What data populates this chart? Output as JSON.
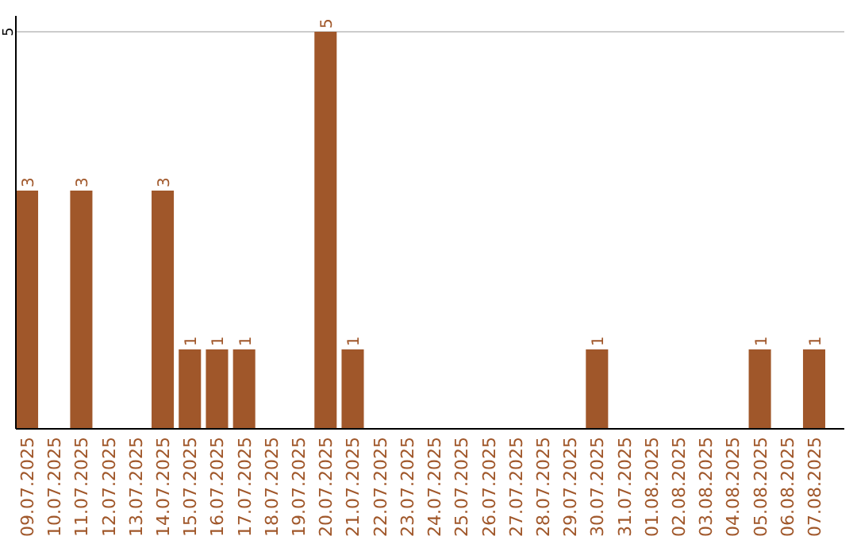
{
  "chart_data": {
    "type": "bar",
    "categories": [
      "09.07.2025",
      "10.07.2025",
      "11.07.2025",
      "12.07.2025",
      "13.07.2025",
      "14.07.2025",
      "15.07.2025",
      "16.07.2025",
      "17.07.2025",
      "18.07.2025",
      "19.07.2025",
      "20.07.2025",
      "21.07.2025",
      "22.07.2025",
      "23.07.2025",
      "24.07.2025",
      "25.07.2025",
      "26.07.2025",
      "27.07.2025",
      "28.07.2025",
      "29.07.2025",
      "30.07.2025",
      "31.07.2025",
      "01.08.2025",
      "02.08.2025",
      "03.08.2025",
      "04.08.2025",
      "05.08.2025",
      "06.08.2025",
      "07.08.2025"
    ],
    "values": [
      3,
      0,
      3,
      0,
      0,
      3,
      1,
      1,
      1,
      0,
      0,
      5,
      1,
      0,
      0,
      0,
      0,
      0,
      0,
      0,
      0,
      1,
      0,
      0,
      0,
      0,
      0,
      1,
      0,
      1
    ],
    "value_labels": [
      "3",
      null,
      "3",
      null,
      null,
      "3",
      "1",
      "1",
      "1",
      null,
      null,
      "5",
      "1",
      null,
      null,
      null,
      null,
      null,
      null,
      null,
      null,
      "1",
      null,
      null,
      null,
      null,
      null,
      "1",
      null,
      "1"
    ],
    "color": "#a0572a",
    "ylim": [
      0,
      5.2
    ],
    "yticks": [
      5
    ],
    "grid": "y"
  }
}
